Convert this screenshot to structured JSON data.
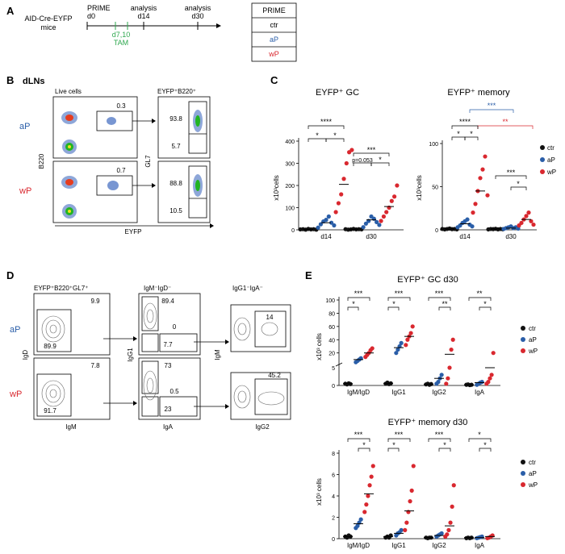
{
  "panels": {
    "A": "A",
    "B": "B",
    "C": "C",
    "D": "D",
    "E": "E"
  },
  "colors": {
    "ctr": "#111111",
    "aP": "#2a5ea8",
    "wP": "#d9282f",
    "tam": "#2fa84f"
  },
  "panelA": {
    "mouse_line1": "AID-Cre-EYFP",
    "mouse_line2": "mice",
    "prime": "PRIME",
    "d0": "d0",
    "tam_days": "d7,10",
    "tam": "TAM",
    "analysis1": "analysis",
    "d14": "d14",
    "analysis2": "analysis",
    "d30": "d30",
    "legend_title": "PRIME",
    "legend": [
      "ctr",
      "aP",
      "wP"
    ]
  },
  "panelB": {
    "tissue": "dLNs",
    "live_cells": "Live cells",
    "gate2": "EYFP⁺B220⁺",
    "row_aP": "aP",
    "row_wP": "wP",
    "y1": "B220",
    "y2": "GL7",
    "x1": "EYFP",
    "aP_eyfp": "0.3",
    "wP_eyfp": "0.7",
    "aP_gl7_hi": "93.8",
    "aP_gl7_lo": "5.7",
    "wP_gl7_hi": "88.8",
    "wP_gl7_lo": "10.5"
  },
  "panelC": {
    "gc_title": "EYFP⁺ GC",
    "mem_title": "EYFP⁺ memory",
    "ylabel": "x10³cells",
    "legend": [
      "ctr",
      "aP",
      "wP"
    ],
    "sig_gc": [
      "****",
      "*",
      "*",
      "***",
      "*",
      "p=0.053"
    ],
    "sig_mem": [
      "***",
      "**",
      "****",
      "*",
      "*",
      "***",
      "*"
    ]
  },
  "panelD": {
    "g1": "EYFP⁺B220⁺GL7⁺",
    "g2": "IgM⁻IgD⁻",
    "g3": "IgG1⁻IgA⁻",
    "row_aP": "aP",
    "row_wP": "wP",
    "x1": "IgM",
    "x2": "IgA",
    "x3": "IgG2",
    "y1": "IgD",
    "y2": "IgG1",
    "y3": "IgM",
    "aP": {
      "q_tr": "9.9",
      "q_bl": "89.9",
      "igg1": "89.4",
      "iga": "0",
      "neg": "7.7",
      "igg2": "14"
    },
    "wP": {
      "q_tr": "7.8",
      "q_bl": "91.7",
      "igg1": "73",
      "iga": "0.5",
      "neg": "23",
      "igg2": "45.2"
    }
  },
  "panelE": {
    "top_title": "EYFP⁺ GC d30",
    "bottom_title": "EYFP⁺ memory d30",
    "ylabel": "x10³ cells",
    "categories": [
      "IgM/IgD",
      "IgG1",
      "IgG2",
      "IgA"
    ],
    "legend": [
      "ctr",
      "aP",
      "wP"
    ],
    "top_sig": [
      "***",
      "*",
      "***",
      "*",
      "***",
      "**",
      "**",
      "*"
    ],
    "bottom_sig": [
      "***",
      "*",
      "***",
      "*",
      "***",
      "*",
      "*",
      "*"
    ]
  },
  "chart_data": [
    {
      "type": "scatter",
      "title": "EYFP⁺ GC",
      "ylabel": "x10³cells",
      "ylim": [
        0,
        400
      ],
      "categories": [
        "d14",
        "d30"
      ],
      "series": [
        {
          "name": "ctr",
          "values": [
            [
              2,
              3,
              1,
              4,
              2,
              3,
              1
            ],
            [
              3,
              1,
              2,
              4,
              2,
              3,
              2
            ]
          ],
          "mean": [
            2,
            2
          ]
        },
        {
          "name": "aP",
          "values": [
            [
              10,
              25,
              38,
              45,
              60,
              32,
              20
            ],
            [
              12,
              28,
              40,
              60,
              50,
              35,
              22
            ]
          ],
          "mean": [
            32,
            45
          ]
        },
        {
          "name": "wP",
          "values": [
            [
              80,
              120,
              160,
              230,
              300,
              350,
              360
            ],
            [
              40,
              60,
              80,
              100,
              130,
              150,
              200
            ]
          ],
          "mean": [
            205,
            105
          ]
        }
      ]
    },
    {
      "type": "scatter",
      "title": "EYFP⁺ memory",
      "ylabel": "x10³ cells",
      "ylim": [
        0,
        100
      ],
      "categories": [
        "d14",
        "d30"
      ],
      "series": [
        {
          "name": "ctr",
          "values": [
            [
              1,
              0.5,
              1,
              1.5,
              0.8,
              1,
              0.6
            ],
            [
              0.5,
              1,
              0.8,
              1.2,
              0.6,
              1,
              0.7
            ]
          ],
          "mean": [
            1,
            1
          ]
        },
        {
          "name": "aP",
          "values": [
            [
              3,
              5,
              8,
              10,
              12,
              6,
              4
            ],
            [
              1,
              2,
              3,
              4,
              2,
              3,
              1.5
            ]
          ],
          "mean": [
            7,
            2
          ]
        },
        {
          "name": "wP",
          "values": [
            [
              20,
              30,
              45,
              60,
              70,
              85,
              40
            ],
            [
              5,
              8,
              12,
              16,
              20,
              10,
              6
            ]
          ],
          "mean": [
            45,
            12
          ]
        }
      ]
    },
    {
      "type": "scatter",
      "title": "EYFP⁺ GC d30",
      "ylabel": "x10³ cells",
      "ylim": [
        0,
        100
      ],
      "categories": [
        "IgM/IgD",
        "IgG1",
        "IgG2",
        "IgA"
      ],
      "series": [
        {
          "name": "ctr",
          "values": [
            [
              0.5,
              0.3,
              0.6,
              0.4
            ],
            [
              0.5,
              0.8,
              0.4,
              0.6
            ],
            [
              0.3,
              0.5,
              0.2,
              0.4
            ],
            [
              0.2,
              0.3,
              0.1,
              0.2
            ]
          ],
          "mean": [
            0.5,
            0.6,
            0.3,
            0.2
          ]
        },
        {
          "name": "aP",
          "values": [
            [
              6,
              8,
              10,
              12
            ],
            [
              20,
              25,
              30,
              35
            ],
            [
              0.5,
              1,
              2,
              3
            ],
            [
              0.2,
              0.5,
              0.8,
              1
            ]
          ],
          "mean": [
            10,
            28,
            2,
            0.8
          ]
        },
        {
          "name": "wP",
          "values": [
            [
              14,
              17,
              20,
              24,
              27
            ],
            [
              32,
              40,
              45,
              50,
              60
            ],
            [
              0.5,
              2,
              5,
              25,
              40
            ],
            [
              0.5,
              1,
              2,
              3,
              20
            ]
          ],
          "mean": [
            20,
            45,
            18,
            5
          ]
        }
      ]
    },
    {
      "type": "scatter",
      "title": "EYFP⁺ memory d30",
      "ylabel": "x10³ cells",
      "ylim": [
        0,
        8
      ],
      "categories": [
        "IgM/IgD",
        "IgG1",
        "IgG2",
        "IgA"
      ],
      "series": [
        {
          "name": "ctr",
          "values": [
            [
              0.2,
              0.1,
              0.3,
              0.2
            ],
            [
              0.1,
              0.2,
              0.1,
              0.3
            ],
            [
              0.1,
              0.05,
              0.1,
              0.1
            ],
            [
              0.05,
              0.1,
              0.05,
              0.1
            ]
          ],
          "mean": [
            0.2,
            0.2,
            0.1,
            0.1
          ]
        },
        {
          "name": "aP",
          "values": [
            [
              1,
              1.2,
              1.5,
              1.8
            ],
            [
              0.3,
              0.5,
              0.6,
              0.8
            ],
            [
              0.2,
              0.3,
              0.4,
              0.5
            ],
            [
              0.05,
              0.1,
              0.15,
              0.2
            ]
          ],
          "mean": [
            1.4,
            0.5,
            0.3,
            0.1
          ]
        },
        {
          "name": "wP",
          "values": [
            [
              2.5,
              3.2,
              4,
              5,
              5.8,
              6.8
            ],
            [
              0.8,
              1.5,
              2.5,
              3.5,
              4.5,
              6.8
            ],
            [
              0.2,
              0.4,
              0.8,
              1.5,
              3,
              5
            ],
            [
              0.05,
              0.1,
              0.2,
              0.3
            ]
          ],
          "mean": [
            4.2,
            2.6,
            1.2,
            0.2
          ]
        }
      ]
    }
  ]
}
